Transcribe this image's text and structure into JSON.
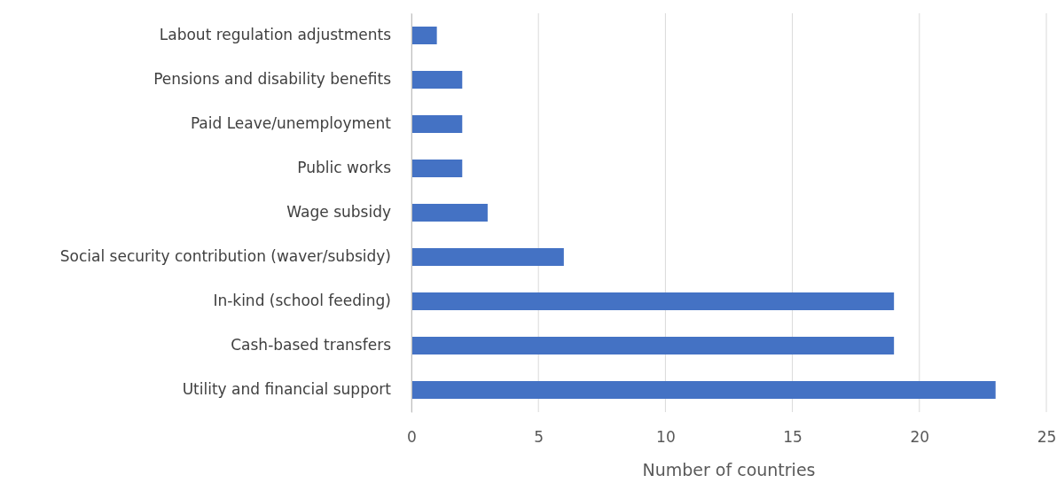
{
  "chart_data": {
    "type": "bar",
    "orientation": "horizontal",
    "xlabel": "Number of countries",
    "categories": [
      "Labout regulation adjustments",
      "Pensions and disability benefits",
      "Paid Leave/unemployment",
      "Public works",
      "Wage subsidy",
      "Social security contribution (waver/subsidy)",
      "In-kind (school feeding)",
      "Cash-based transfers",
      "Utility and financial support"
    ],
    "values": [
      1,
      2,
      2,
      2,
      3,
      6,
      19,
      19,
      23
    ],
    "color": "#4472c4",
    "xlim": [
      0,
      25
    ],
    "xticks": [
      0,
      5,
      10,
      15,
      20,
      25
    ],
    "grid": "x"
  }
}
